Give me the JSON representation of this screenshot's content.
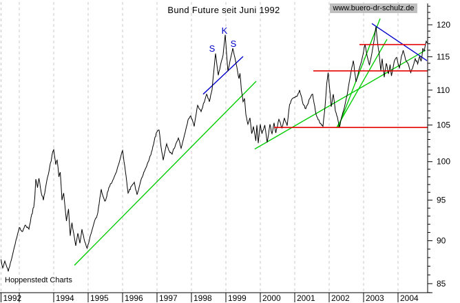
{
  "header": {
    "title": "Bund Future seit Juni 1992",
    "watermark": "www.buero-dr-schulz.de"
  },
  "footer": {
    "source_label": "Hoppenstedt Charts"
  },
  "colors": {
    "price": "#000000",
    "trend_green": "#00cc00",
    "pattern_blue": "#0000cc",
    "level_red": "#e60000",
    "grid": "#c8c8c8",
    "axis": "#000000",
    "watermark_bg": "#c0c0c0",
    "background": "#ffffff"
  },
  "chart_data": {
    "type": "line",
    "title": "Bund Future seit Juni 1992",
    "x_axis": {
      "range_years": [
        1992.45,
        2004.92
      ],
      "grid": "dashed-vertical",
      "ticks": [
        {
          "year": 1992,
          "label": "1992"
        },
        {
          "year": 1993,
          "label": ""
        },
        {
          "year": 1994,
          "label": "1994"
        },
        {
          "year": 1995,
          "label": "1995"
        },
        {
          "year": 1996,
          "label": "1996"
        },
        {
          "year": 1997,
          "label": "1997"
        },
        {
          "year": 1998,
          "label": "1998"
        },
        {
          "year": 1999,
          "label": "1999"
        },
        {
          "year": 2000,
          "label": "2000"
        },
        {
          "year": 2001,
          "label": "2001"
        },
        {
          "year": 2002,
          "label": "2002"
        },
        {
          "year": 2003,
          "label": "2003"
        },
        {
          "year": 2004,
          "label": "2004"
        }
      ]
    },
    "y_axis": {
      "side": "right",
      "scale": "log",
      "visible_range": [
        84,
        123
      ],
      "minor_tick_step": 1,
      "labeled_ticks": [
        85,
        90,
        95,
        100,
        105,
        110,
        115,
        120
      ]
    },
    "series": [
      {
        "name": "Bund Future",
        "color_key": "price",
        "points": [
          [
            1992.46,
            87.8
          ],
          [
            1992.52,
            86.8
          ],
          [
            1992.58,
            87.6
          ],
          [
            1992.68,
            86.4
          ],
          [
            1992.78,
            87.9
          ],
          [
            1992.88,
            89.6
          ],
          [
            1993.0,
            91.6
          ],
          [
            1993.08,
            91.1
          ],
          [
            1993.18,
            91.9
          ],
          [
            1993.28,
            91.4
          ],
          [
            1993.36,
            93.2
          ],
          [
            1993.42,
            94.1
          ],
          [
            1993.45,
            95.3
          ],
          [
            1993.48,
            97.7
          ],
          [
            1993.53,
            96.6
          ],
          [
            1993.57,
            97.8
          ],
          [
            1993.64,
            95.9
          ],
          [
            1993.7,
            95.0
          ],
          [
            1993.78,
            97.0
          ],
          [
            1993.88,
            99.2
          ],
          [
            1993.97,
            101.3
          ],
          [
            1994.0,
            101.6
          ],
          [
            1994.06,
            99.6
          ],
          [
            1994.1,
            100.2
          ],
          [
            1994.15,
            98.0
          ],
          [
            1994.19,
            98.6
          ],
          [
            1994.24,
            95.0
          ],
          [
            1994.29,
            95.9
          ],
          [
            1994.37,
            92.4
          ],
          [
            1994.43,
            93.9
          ],
          [
            1994.48,
            90.6
          ],
          [
            1994.53,
            92.2
          ],
          [
            1994.58,
            90.9
          ],
          [
            1994.64,
            89.4
          ],
          [
            1994.7,
            90.9
          ],
          [
            1994.76,
            89.7
          ],
          [
            1994.82,
            91.4
          ],
          [
            1994.9,
            89.9
          ],
          [
            1994.97,
            89.1
          ],
          [
            1995.08,
            90.8
          ],
          [
            1995.18,
            92.3
          ],
          [
            1995.28,
            93.4
          ],
          [
            1995.38,
            96.4
          ],
          [
            1995.44,
            95.4
          ],
          [
            1995.5,
            94.9
          ],
          [
            1995.6,
            96.6
          ],
          [
            1995.72,
            97.6
          ],
          [
            1995.82,
            98.6
          ],
          [
            1995.92,
            100.2
          ],
          [
            1996.0,
            101.5
          ],
          [
            1996.08,
            98.8
          ],
          [
            1996.16,
            95.9
          ],
          [
            1996.26,
            96.8
          ],
          [
            1996.34,
            97.3
          ],
          [
            1996.42,
            95.7
          ],
          [
            1996.55,
            97.8
          ],
          [
            1996.68,
            99.2
          ],
          [
            1996.76,
            100.1
          ],
          [
            1996.84,
            101.3
          ],
          [
            1996.92,
            102.8
          ],
          [
            1996.98,
            103.9
          ],
          [
            1997.06,
            104.3
          ],
          [
            1997.12,
            101.9
          ],
          [
            1997.18,
            100.2
          ],
          [
            1997.28,
            102.4
          ],
          [
            1997.36,
            101.4
          ],
          [
            1997.44,
            101.0
          ],
          [
            1997.54,
            102.3
          ],
          [
            1997.62,
            103.2
          ],
          [
            1997.7,
            101.8
          ],
          [
            1997.82,
            104.0
          ],
          [
            1997.9,
            105.7
          ],
          [
            1997.98,
            106.3
          ],
          [
            1998.08,
            104.8
          ],
          [
            1998.18,
            107.8
          ],
          [
            1998.28,
            106.9
          ],
          [
            1998.44,
            109.4
          ],
          [
            1998.52,
            108.3
          ],
          [
            1998.6,
            110.1
          ],
          [
            1998.64,
            112.3
          ],
          [
            1998.7,
            115.5
          ],
          [
            1998.78,
            112.2
          ],
          [
            1998.86,
            114.1
          ],
          [
            1998.92,
            115.3
          ],
          [
            1998.98,
            118.4
          ],
          [
            1999.06,
            112.8
          ],
          [
            1999.14,
            114.8
          ],
          [
            1999.2,
            116.3
          ],
          [
            1999.28,
            114.4
          ],
          [
            1999.38,
            111.7
          ],
          [
            1999.41,
            112.5
          ],
          [
            1999.45,
            110.0
          ],
          [
            1999.5,
            108.3
          ],
          [
            1999.54,
            108.8
          ],
          [
            1999.58,
            106.5
          ],
          [
            1999.64,
            105.1
          ],
          [
            1999.7,
            106.0
          ],
          [
            1999.75,
            103.8
          ],
          [
            1999.8,
            104.8
          ],
          [
            1999.87,
            102.8
          ],
          [
            1999.9,
            105.0
          ],
          [
            1999.94,
            102.5
          ],
          [
            2000.0,
            105.1
          ],
          [
            2000.05,
            103.8
          ],
          [
            2000.13,
            105.0
          ],
          [
            2000.2,
            102.6
          ],
          [
            2000.28,
            105.1
          ],
          [
            2000.34,
            103.8
          ],
          [
            2000.4,
            105.3
          ],
          [
            2000.45,
            103.9
          ],
          [
            2000.54,
            105.8
          ],
          [
            2000.63,
            104.6
          ],
          [
            2000.7,
            106.0
          ],
          [
            2000.78,
            104.9
          ],
          [
            2000.85,
            107.9
          ],
          [
            2000.92,
            108.7
          ],
          [
            2001.0,
            108.9
          ],
          [
            2001.08,
            109.2
          ],
          [
            2001.14,
            110.0
          ],
          [
            2001.24,
            108.0
          ],
          [
            2001.32,
            107.3
          ],
          [
            2001.44,
            108.8
          ],
          [
            2001.52,
            109.4
          ],
          [
            2001.62,
            106.5
          ],
          [
            2001.72,
            105.4
          ],
          [
            2001.82,
            104.8
          ],
          [
            2001.88,
            107.6
          ],
          [
            2001.93,
            111.0
          ],
          [
            2001.97,
            112.6
          ],
          [
            2002.02,
            109.9
          ],
          [
            2002.06,
            107.6
          ],
          [
            2002.12,
            109.4
          ],
          [
            2002.18,
            107.0
          ],
          [
            2002.24,
            106.1
          ],
          [
            2002.3,
            104.7
          ],
          [
            2002.38,
            106.4
          ],
          [
            2002.46,
            107.9
          ],
          [
            2002.54,
            109.8
          ],
          [
            2002.62,
            112.2
          ],
          [
            2002.7,
            114.4
          ],
          [
            2002.78,
            111.2
          ],
          [
            2002.86,
            112.9
          ],
          [
            2002.94,
            114.3
          ],
          [
            2003.04,
            116.9
          ],
          [
            2003.1,
            115.2
          ],
          [
            2003.17,
            113.7
          ],
          [
            2003.24,
            115.5
          ],
          [
            2003.3,
            117.4
          ],
          [
            2003.36,
            119.7
          ],
          [
            2003.41,
            117.0
          ],
          [
            2003.45,
            115.6
          ],
          [
            2003.5,
            112.9
          ],
          [
            2003.54,
            114.7
          ],
          [
            2003.6,
            111.9
          ],
          [
            2003.66,
            114.0
          ],
          [
            2003.72,
            112.4
          ],
          [
            2003.77,
            113.8
          ],
          [
            2003.81,
            112.1
          ],
          [
            2003.89,
            114.3
          ],
          [
            2003.96,
            114.9
          ],
          [
            2004.04,
            113.3
          ],
          [
            2004.1,
            115.1
          ],
          [
            2004.15,
            116.0
          ],
          [
            2004.22,
            114.5
          ],
          [
            2004.29,
            114.0
          ],
          [
            2004.37,
            112.6
          ],
          [
            2004.44,
            113.6
          ],
          [
            2004.5,
            114.7
          ],
          [
            2004.57,
            113.9
          ],
          [
            2004.63,
            115.1
          ],
          [
            2004.67,
            114.3
          ],
          [
            2004.72,
            116.3
          ],
          [
            2004.76,
            115.9
          ],
          [
            2004.82,
            117.4
          ],
          [
            2004.85,
            117.1
          ]
        ]
      }
    ],
    "trendlines": [
      {
        "name": "uptrend-1994-1999",
        "color_key": "trend_green",
        "x1": 1994.6,
        "p1": 87.1,
        "x2": 1999.88,
        "p2": 111.3
      },
      {
        "name": "uptrend-2000-2004",
        "color_key": "trend_green",
        "x1": 1999.84,
        "p1": 101.7,
        "x2": 2004.8,
        "p2": 116.0
      },
      {
        "name": "steep-uptrend-2002-2003",
        "color_key": "trend_green",
        "x1": 2002.26,
        "p1": 104.66,
        "x2": 2003.48,
        "p2": 121.0
      },
      {
        "name": "uptrend-2002-2003",
        "color_key": "trend_green",
        "x1": 2002.22,
        "p1": 104.66,
        "x2": 2003.68,
        "p2": 117.72
      },
      {
        "name": "head-shoulders-trendline-1998-1999",
        "color_key": "pattern_blue",
        "x1": 1998.34,
        "p1": 109.4,
        "x2": 1999.5,
        "p2": 115.04
      },
      {
        "name": "downtrend-2003-2004",
        "color_key": "pattern_blue",
        "x1": 2003.24,
        "p1": 120.2,
        "x2": 2004.84,
        "p2": 114.4
      }
    ],
    "horizontal_levels": [
      {
        "name": "support-104.7",
        "price": 104.66,
        "from_year": 2000.4,
        "to_year": 2004.86,
        "color_key": "level_red"
      },
      {
        "name": "support-112.8",
        "price": 112.85,
        "from_year": 2001.54,
        "to_year": 2004.86,
        "color_key": "level_red"
      },
      {
        "name": "resistance-116.9",
        "price": 116.88,
        "from_year": 2002.88,
        "to_year": 2004.8,
        "color_key": "level_red"
      }
    ],
    "pattern_labels": [
      {
        "text": "S",
        "year": 1998.6,
        "price": 116.21,
        "color_key": "pattern_blue"
      },
      {
        "text": "K",
        "year": 1998.96,
        "price": 119.01,
        "color_key": "pattern_blue"
      },
      {
        "text": "S",
        "year": 1999.22,
        "price": 116.95,
        "color_key": "pattern_blue"
      }
    ]
  }
}
